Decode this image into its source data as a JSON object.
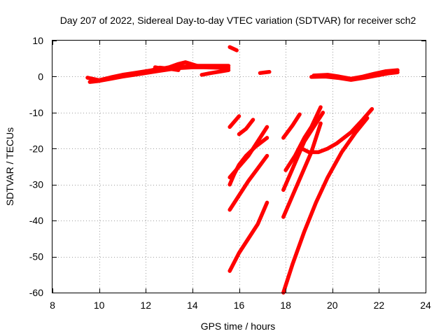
{
  "chart_data": {
    "type": "scatter",
    "title": "Day 207 of 2022, Sidereal Day-to-day VTEC variation (SDTVAR) for receiver sch2",
    "xlabel": "GPS time / hours",
    "ylabel": "SDTVAR / TECUs",
    "xlim": [
      8,
      24
    ],
    "ylim": [
      -60,
      10
    ],
    "x_ticks": [
      8,
      10,
      12,
      14,
      16,
      18,
      20,
      22,
      24
    ],
    "y_ticks": [
      10,
      0,
      -10,
      -20,
      -30,
      -40,
      -50,
      -60
    ],
    "grid": true,
    "legend": "none",
    "color": "#ff0000",
    "series": [
      {
        "points": [
          [
            9.5,
            -0.3
          ],
          [
            10,
            -1
          ],
          [
            10.5,
            -0.2
          ],
          [
            11,
            0.5
          ],
          [
            11.5,
            1
          ],
          [
            12,
            1.5
          ],
          [
            12.5,
            2
          ],
          [
            13,
            2.3
          ],
          [
            13.5,
            2.7
          ],
          [
            14,
            3
          ],
          [
            14.5,
            3
          ],
          [
            15,
            3
          ],
          [
            15.55,
            3
          ]
        ]
      },
      {
        "points": [
          [
            9.6,
            -1.5
          ],
          [
            10,
            -1.2
          ],
          [
            10.5,
            -0.6
          ],
          [
            11,
            0
          ],
          [
            11.5,
            0.5
          ],
          [
            12,
            1
          ],
          [
            12.5,
            1.5
          ],
          [
            13,
            2
          ],
          [
            13.5,
            2.4
          ],
          [
            14,
            2.6
          ],
          [
            14.5,
            2.6
          ],
          [
            15,
            2.5
          ],
          [
            15.55,
            2.4
          ]
        ]
      },
      {
        "points": [
          [
            12.4,
            2.6
          ],
          [
            12.7,
            2.2
          ],
          [
            13,
            2.6
          ],
          [
            13.4,
            3.5
          ],
          [
            13.7,
            4
          ],
          [
            13.9,
            3.6
          ],
          [
            14.2,
            3
          ]
        ]
      },
      {
        "points": [
          [
            12.2,
            1.6
          ],
          [
            12.6,
            2.5
          ],
          [
            13,
            2.2
          ],
          [
            13.4,
            1.8
          ]
        ]
      },
      {
        "points": [
          [
            14.4,
            0.5
          ],
          [
            14.8,
            1
          ],
          [
            15.2,
            1.4
          ],
          [
            15.55,
            1.8
          ]
        ]
      },
      {
        "points": [
          [
            15.6,
            8.2
          ],
          [
            15.9,
            7.3
          ]
        ]
      },
      {
        "points": [
          [
            16.9,
            1
          ],
          [
            17.3,
            1.3
          ]
        ]
      },
      {
        "points": [
          [
            15.6,
            -14
          ],
          [
            16,
            -11
          ]
        ]
      },
      {
        "points": [
          [
            16,
            -16
          ],
          [
            16.3,
            -14.5
          ],
          [
            16.6,
            -12
          ]
        ]
      },
      {
        "points": [
          [
            15.6,
            -30
          ],
          [
            15.8,
            -27
          ],
          [
            16,
            -24.5
          ],
          [
            16.3,
            -22
          ],
          [
            16.7,
            -19.5
          ],
          [
            17.2,
            -17
          ]
        ]
      },
      {
        "points": [
          [
            15.6,
            -28
          ],
          [
            16,
            -25
          ],
          [
            16.4,
            -22
          ],
          [
            16.8,
            -18
          ],
          [
            17.2,
            -14
          ]
        ]
      },
      {
        "points": [
          [
            15.6,
            -37
          ],
          [
            16,
            -33
          ],
          [
            16.4,
            -29
          ],
          [
            16.8,
            -25.5
          ],
          [
            17.2,
            -22
          ]
        ]
      },
      {
        "points": [
          [
            15.6,
            -54
          ],
          [
            16,
            -49
          ],
          [
            16.4,
            -45
          ],
          [
            16.8,
            -41
          ],
          [
            17.2,
            -35
          ]
        ]
      },
      {
        "points": [
          [
            17.9,
            -17
          ],
          [
            18.3,
            -13.5
          ],
          [
            18.6,
            -10.5
          ]
        ]
      },
      {
        "points": [
          [
            17.9,
            -31.5
          ],
          [
            18.2,
            -27
          ],
          [
            18.5,
            -22.5
          ],
          [
            18.8,
            -18
          ],
          [
            19.2,
            -14
          ],
          [
            19.6,
            -10
          ]
        ]
      },
      {
        "points": [
          [
            18,
            -26
          ],
          [
            18.4,
            -22
          ],
          [
            18.8,
            -17
          ],
          [
            19.1,
            -14
          ],
          [
            19.5,
            -8.5
          ]
        ]
      },
      {
        "points": [
          [
            17.9,
            -39
          ],
          [
            18.3,
            -33
          ],
          [
            18.7,
            -27
          ],
          [
            19.1,
            -21
          ],
          [
            19.5,
            -13
          ]
        ]
      },
      {
        "points": [
          [
            18.7,
            -20
          ],
          [
            19,
            -21
          ],
          [
            19.4,
            -21
          ],
          [
            19.8,
            -20
          ],
          [
            20.2,
            -18.5
          ],
          [
            20.8,
            -15.5
          ],
          [
            21.3,
            -12
          ],
          [
            21.7,
            -9
          ]
        ]
      },
      {
        "points": [
          [
            17.9,
            -60
          ],
          [
            18.3,
            -52
          ],
          [
            18.8,
            -43
          ],
          [
            19.3,
            -35
          ],
          [
            19.8,
            -28
          ],
          [
            20.4,
            -21
          ],
          [
            21,
            -15.5
          ],
          [
            21.5,
            -11.5
          ]
        ]
      },
      {
        "points": [
          [
            19.2,
            0.3
          ],
          [
            19.8,
            0.5
          ],
          [
            20.3,
            0
          ],
          [
            20.8,
            -0.6
          ],
          [
            21.3,
            0
          ],
          [
            21.8,
            0.8
          ],
          [
            22.3,
            1.5
          ],
          [
            22.8,
            1.8
          ]
        ]
      },
      {
        "points": [
          [
            19.1,
            -0.1
          ],
          [
            19.7,
            0
          ],
          [
            20.3,
            -0.4
          ],
          [
            20.8,
            -0.9
          ],
          [
            21.4,
            -0.3
          ],
          [
            21.9,
            0.3
          ],
          [
            22.4,
            0.9
          ],
          [
            22.8,
            1.2
          ]
        ]
      }
    ]
  }
}
